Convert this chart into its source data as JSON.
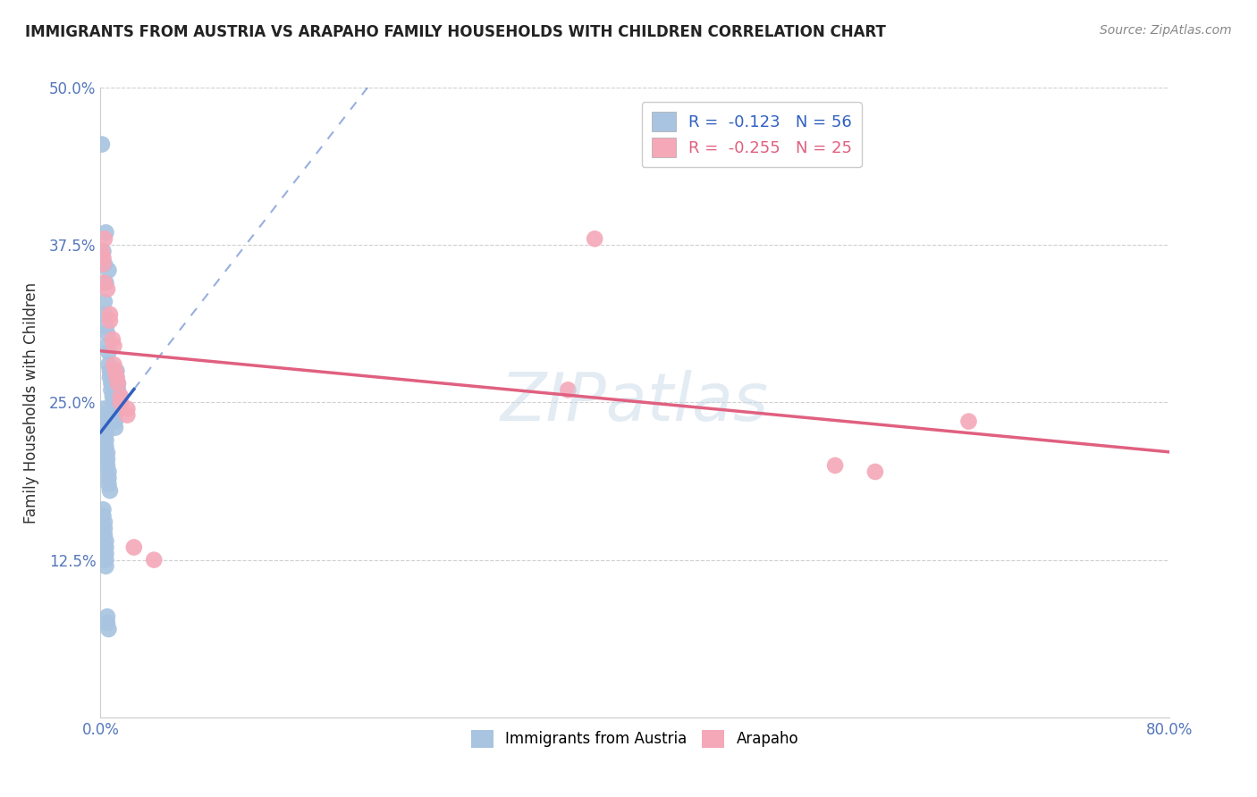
{
  "title": "IMMIGRANTS FROM AUSTRIA VS ARAPAHO FAMILY HOUSEHOLDS WITH CHILDREN CORRELATION CHART",
  "source": "Source: ZipAtlas.com",
  "ylabel": "Family Households with Children",
  "xlim": [
    0.0,
    0.8
  ],
  "ylim": [
    0.0,
    0.5
  ],
  "xticks": [
    0.0,
    0.2,
    0.4,
    0.6,
    0.8
  ],
  "xticklabels": [
    "0.0%",
    "",
    "",
    "",
    "80.0%"
  ],
  "yticks": [
    0.0,
    0.125,
    0.25,
    0.375,
    0.5
  ],
  "yticklabels": [
    "",
    "12.5%",
    "25.0%",
    "37.5%",
    "50.0%"
  ],
  "blue_R": -0.123,
  "blue_N": 56,
  "pink_R": -0.255,
  "pink_N": 25,
  "blue_color": "#a8c4e0",
  "pink_color": "#f4a8b8",
  "blue_line_color": "#3060c0",
  "pink_line_color": "#e06080",
  "blue_scatter": [
    [
      0.001,
      0.455
    ],
    [
      0.004,
      0.385
    ],
    [
      0.006,
      0.355
    ],
    [
      0.002,
      0.37
    ],
    [
      0.003,
      0.36
    ],
    [
      0.004,
      0.345
    ],
    [
      0.003,
      0.33
    ],
    [
      0.003,
      0.32
    ],
    [
      0.004,
      0.31
    ],
    [
      0.005,
      0.305
    ],
    [
      0.005,
      0.295
    ],
    [
      0.006,
      0.29
    ],
    [
      0.006,
      0.28
    ],
    [
      0.007,
      0.275
    ],
    [
      0.007,
      0.27
    ],
    [
      0.008,
      0.265
    ],
    [
      0.008,
      0.26
    ],
    [
      0.009,
      0.255
    ],
    [
      0.009,
      0.25
    ],
    [
      0.01,
      0.245
    ],
    [
      0.01,
      0.24
    ],
    [
      0.011,
      0.235
    ],
    [
      0.011,
      0.23
    ],
    [
      0.012,
      0.275
    ],
    [
      0.012,
      0.27
    ],
    [
      0.013,
      0.265
    ],
    [
      0.013,
      0.26
    ],
    [
      0.014,
      0.255
    ],
    [
      0.014,
      0.25
    ],
    [
      0.002,
      0.245
    ],
    [
      0.002,
      0.24
    ],
    [
      0.003,
      0.235
    ],
    [
      0.003,
      0.23
    ],
    [
      0.004,
      0.225
    ],
    [
      0.004,
      0.22
    ],
    [
      0.004,
      0.215
    ],
    [
      0.005,
      0.21
    ],
    [
      0.005,
      0.205
    ],
    [
      0.005,
      0.2
    ],
    [
      0.006,
      0.195
    ],
    [
      0.006,
      0.19
    ],
    [
      0.006,
      0.185
    ],
    [
      0.007,
      0.18
    ],
    [
      0.002,
      0.165
    ],
    [
      0.002,
      0.16
    ],
    [
      0.003,
      0.155
    ],
    [
      0.003,
      0.15
    ],
    [
      0.003,
      0.145
    ],
    [
      0.004,
      0.14
    ],
    [
      0.004,
      0.135
    ],
    [
      0.004,
      0.13
    ],
    [
      0.004,
      0.125
    ],
    [
      0.004,
      0.12
    ],
    [
      0.005,
      0.08
    ],
    [
      0.005,
      0.075
    ],
    [
      0.006,
      0.07
    ]
  ],
  "pink_scatter": [
    [
      0.001,
      0.37
    ],
    [
      0.002,
      0.365
    ],
    [
      0.002,
      0.36
    ],
    [
      0.003,
      0.345
    ],
    [
      0.003,
      0.38
    ],
    [
      0.005,
      0.34
    ],
    [
      0.007,
      0.32
    ],
    [
      0.007,
      0.315
    ],
    [
      0.009,
      0.3
    ],
    [
      0.01,
      0.295
    ],
    [
      0.01,
      0.28
    ],
    [
      0.011,
      0.275
    ],
    [
      0.012,
      0.27
    ],
    [
      0.013,
      0.265
    ],
    [
      0.015,
      0.255
    ],
    [
      0.015,
      0.25
    ],
    [
      0.02,
      0.245
    ],
    [
      0.02,
      0.24
    ],
    [
      0.025,
      0.135
    ],
    [
      0.04,
      0.125
    ],
    [
      0.35,
      0.26
    ],
    [
      0.37,
      0.38
    ],
    [
      0.55,
      0.2
    ],
    [
      0.58,
      0.195
    ],
    [
      0.65,
      0.235
    ]
  ],
  "watermark": "ZIPatlas",
  "grid_color": "#d0d0d0",
  "background_color": "#ffffff"
}
